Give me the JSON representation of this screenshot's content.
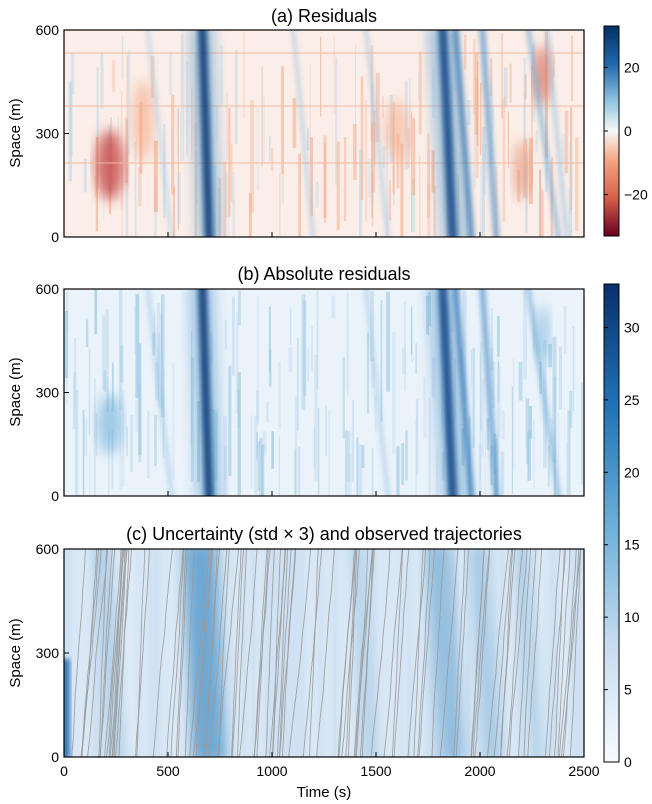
{
  "figure": {
    "xlabel": "Time (s)",
    "ylabel": "Space (m)",
    "xlim": [
      0,
      2500
    ],
    "ylim": [
      0,
      600
    ],
    "x_ticks": [
      "0",
      "500",
      "1000",
      "1500",
      "2000",
      "2500"
    ],
    "y_ticks": [
      "0",
      "300",
      "600"
    ]
  },
  "chart_data": [
    {
      "type": "heatmap",
      "title": "(a) Residuals",
      "xlim": [
        0,
        2500
      ],
      "ylim": [
        0,
        600
      ],
      "colormap": "RdBu diverging",
      "color_range": [
        -33,
        33
      ],
      "colorbar_ticks": [
        "20",
        "0",
        "−20"
      ],
      "colorbar_tick_values": [
        20,
        0,
        -20
      ],
      "features": [
        {
          "kind": "congestion-wave-band",
          "x_at_top": 660,
          "x_at_bottom": 700,
          "peak_value": 30
        },
        {
          "kind": "congestion-wave-band",
          "x_at_top": 1850,
          "x_at_bottom": 1880,
          "peak_value": 28
        },
        {
          "kind": "negative-patch",
          "x": 220,
          "y": 150,
          "value": -20
        },
        {
          "kind": "negative-patch",
          "x": 2300,
          "y": 500,
          "value": -15
        }
      ]
    },
    {
      "type": "heatmap",
      "title": "(b) Absolute residuals",
      "xlim": [
        0,
        2500
      ],
      "ylim": [
        0,
        600
      ],
      "colormap": "Blues",
      "color_range": [
        0,
        33
      ]
    },
    {
      "type": "heatmap",
      "title": "(c) Uncertainty (std × 3) and observed trajectories",
      "xlim": [
        0,
        2500
      ],
      "ylim": [
        0,
        600
      ],
      "colormap": "Blues",
      "color_range": [
        0,
        33
      ],
      "colorbar_ticks": [
        "30",
        "25",
        "20",
        "15",
        "10",
        "5",
        "0"
      ],
      "colorbar_tick_values": [
        30,
        25,
        20,
        15,
        10,
        5,
        0
      ],
      "overlay": "observed vehicle trajectories (grey lines)"
    }
  ],
  "colors": {
    "dark_red": "#67001f",
    "light_red": "#f4a582",
    "white": "#f7f7f7",
    "light_blue": "#92c5de",
    "dark_blue": "#053061",
    "trajectory": "#9a9a9a"
  }
}
